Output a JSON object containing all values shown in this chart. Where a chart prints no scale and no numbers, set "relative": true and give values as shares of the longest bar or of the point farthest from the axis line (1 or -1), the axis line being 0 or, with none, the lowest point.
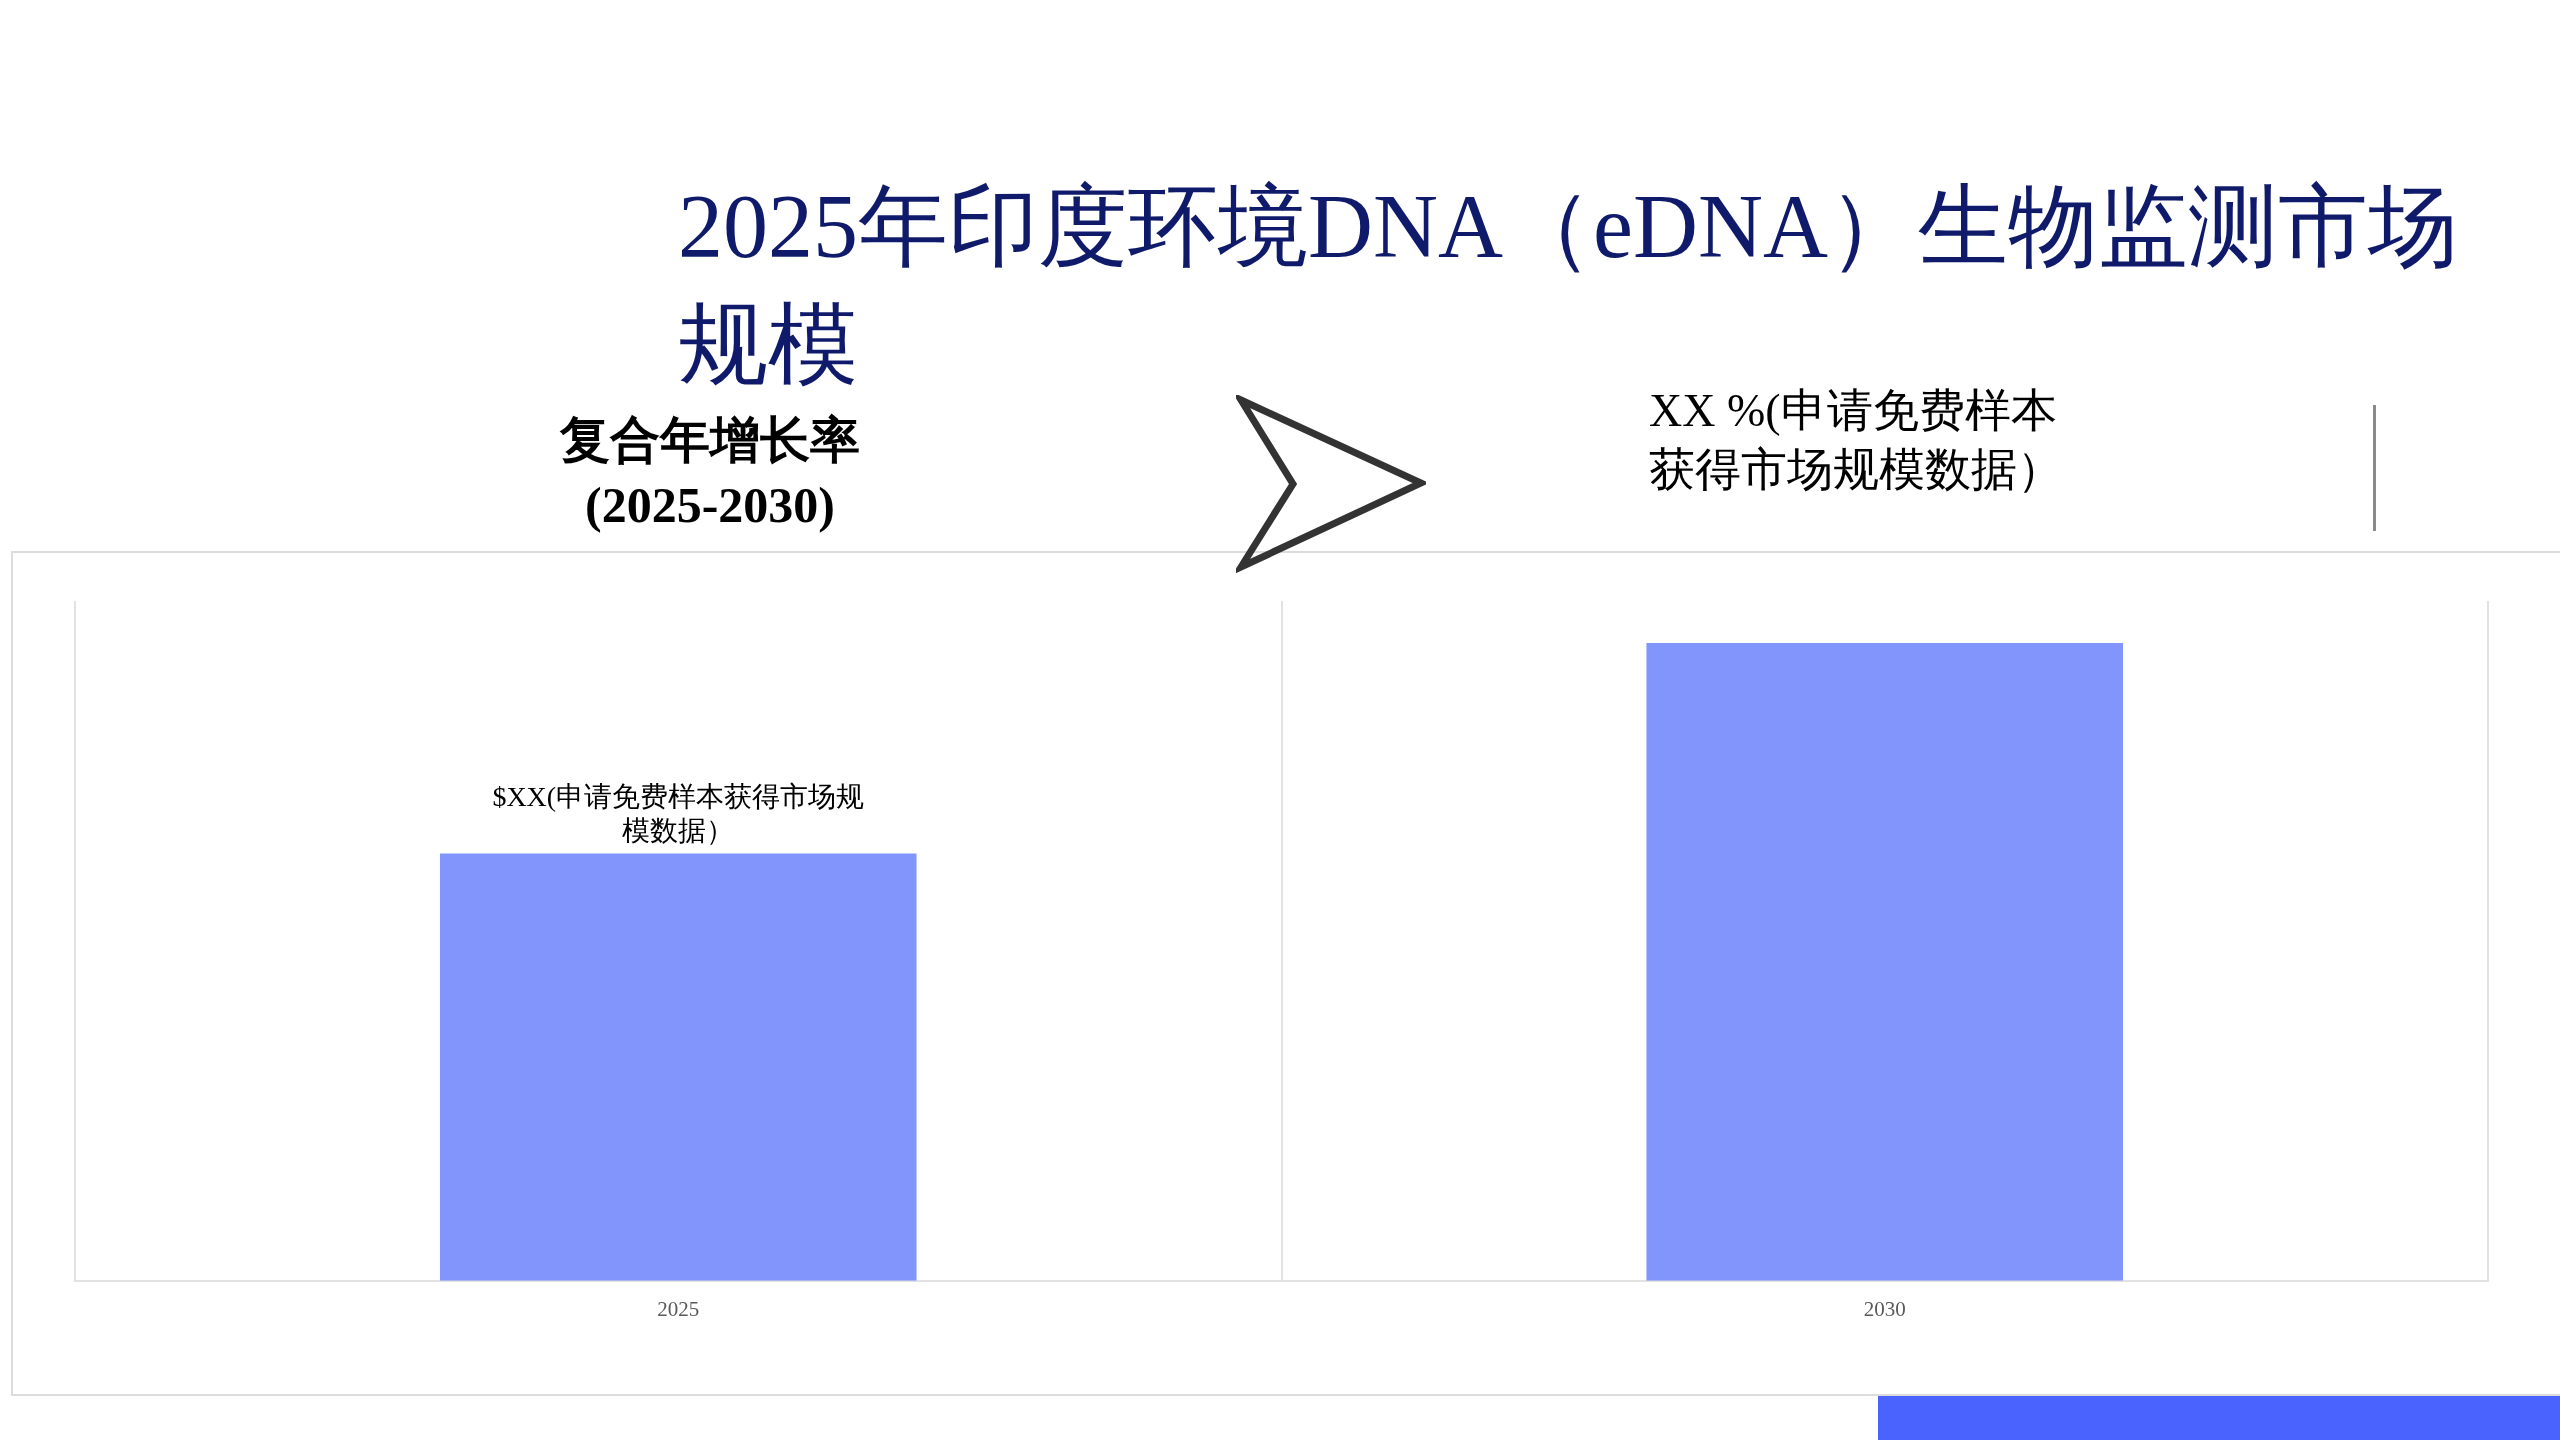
{
  "chart_data": {
    "type": "bar",
    "title": "2025年印度环境DNA（eDNA）生物监测市场规模",
    "categories": [
      "2025",
      "2030"
    ],
    "values": [
      0.67,
      1
    ],
    "relative": true,
    "color": "#8195fd",
    "grid": "x",
    "annotations": [
      "复合年增长率 (2025-2030)",
      "XX %(申请免费样本获得市场规模数据）",
      {
        "text": "$XX(申请免费样本获得市场规模数据）",
        "x": "2025",
        "y": 0.67
      }
    ]
  }
}
